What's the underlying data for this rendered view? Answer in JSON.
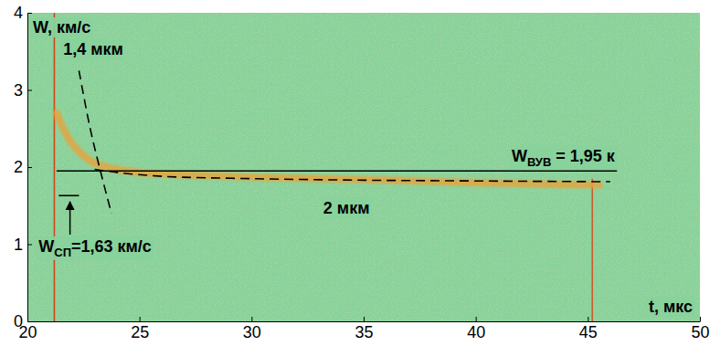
{
  "chart_data": {
    "type": "line",
    "x_label": "t, мкс",
    "y_label": "W, км/с",
    "xlim": [
      20,
      50
    ],
    "ylim": [
      0,
      4
    ],
    "xticks": [
      20,
      25,
      30,
      35,
      40,
      45,
      50
    ],
    "yticks": [
      0,
      1,
      2,
      3,
      4
    ],
    "grid": false,
    "series": [
      {
        "color": "#d2451e",
        "line_style": "solid",
        "x": [
          21.2,
          21.2
        ],
        "values": [
          0,
          4
        ]
      },
      {
        "color": "#cc5a2a",
        "line_style": "solid",
        "x": [
          45.2,
          45.2
        ],
        "values": [
          0,
          1.85
        ]
      },
      {
        "color": "#e8a23c",
        "line_style": "band",
        "x": [
          21.3,
          21.6,
          22,
          22.5,
          23,
          24,
          25,
          27,
          30,
          33,
          36,
          40,
          43,
          45.5
        ],
        "values": [
          2.7,
          2.5,
          2.3,
          2.15,
          2.05,
          1.97,
          1.93,
          1.9,
          1.87,
          1.85,
          1.83,
          1.8,
          1.78,
          1.77
        ]
      },
      {
        "color": "#000000",
        "line_style": "dashed",
        "x": [
          22.3,
          22.8,
          23.3,
          23.75
        ],
        "values": [
          3.25,
          2.5,
          1.9,
          1.4
        ]
      },
      {
        "color": "#000000",
        "line_style": "dashed",
        "x": [
          23,
          24,
          26,
          30,
          35,
          40,
          46
        ],
        "values": [
          1.97,
          1.93,
          1.88,
          1.85,
          1.83,
          1.82,
          1.81
        ]
      },
      {
        "color": "#000000",
        "line_style": "solid",
        "x": [
          21.3,
          46.3
        ],
        "values": [
          1.95,
          1.95
        ]
      },
      {
        "color": "#000000",
        "line_style": "solid",
        "x": [
          21.4,
          22.3
        ],
        "values": [
          1.63,
          1.63
        ]
      }
    ],
    "annotations": [
      {
        "text": "1,4 мкм",
        "x": 21.6,
        "y": 3.45
      },
      {
        "text": "2 мкм",
        "x": 33.2,
        "y": 1.4
      },
      {
        "text": "W",
        "sub": "ВУВ",
        "text_after": " = 1,95 к",
        "x": 41.6,
        "y": 2.07
      },
      {
        "text": "W",
        "sub": "СП",
        "text_after": "=1,63 км/с",
        "x": 20.5,
        "y": 0.9,
        "arrow_x": 21.9,
        "arrow_y": 1.55
      }
    ]
  }
}
